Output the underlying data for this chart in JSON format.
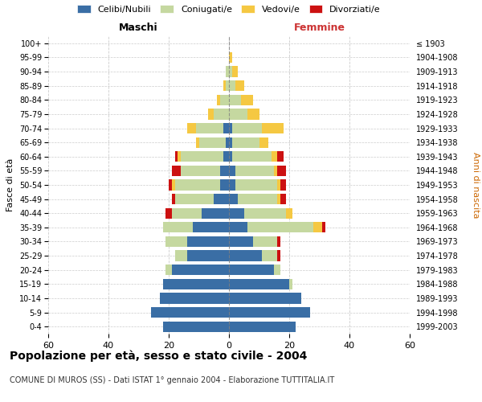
{
  "age_groups": [
    "0-4",
    "5-9",
    "10-14",
    "15-19",
    "20-24",
    "25-29",
    "30-34",
    "35-39",
    "40-44",
    "45-49",
    "50-54",
    "55-59",
    "60-64",
    "65-69",
    "70-74",
    "75-79",
    "80-84",
    "85-89",
    "90-94",
    "95-99",
    "100+"
  ],
  "birth_years": [
    "1999-2003",
    "1994-1998",
    "1989-1993",
    "1984-1988",
    "1979-1983",
    "1974-1978",
    "1969-1973",
    "1964-1968",
    "1959-1963",
    "1954-1958",
    "1949-1953",
    "1944-1948",
    "1939-1943",
    "1934-1938",
    "1929-1933",
    "1924-1928",
    "1919-1923",
    "1914-1918",
    "1909-1913",
    "1904-1908",
    "≤ 1903"
  ],
  "maschi": {
    "celibi": [
      22,
      26,
      23,
      22,
      19,
      14,
      14,
      12,
      9,
      5,
      3,
      3,
      2,
      1,
      2,
      0,
      0,
      0,
      0,
      0,
      0
    ],
    "coniugati": [
      0,
      0,
      0,
      0,
      2,
      4,
      7,
      10,
      10,
      13,
      15,
      13,
      14,
      9,
      9,
      5,
      3,
      1,
      1,
      0,
      0
    ],
    "vedovi": [
      0,
      0,
      0,
      0,
      0,
      0,
      0,
      0,
      0,
      0,
      1,
      0,
      1,
      1,
      3,
      2,
      1,
      1,
      0,
      0,
      0
    ],
    "divorziati": [
      0,
      0,
      0,
      0,
      0,
      0,
      0,
      0,
      2,
      1,
      1,
      3,
      1,
      0,
      0,
      0,
      0,
      0,
      0,
      0,
      0
    ]
  },
  "femmine": {
    "nubili": [
      22,
      27,
      24,
      20,
      15,
      11,
      8,
      6,
      5,
      3,
      2,
      2,
      1,
      1,
      1,
      0,
      0,
      0,
      0,
      0,
      0
    ],
    "coniugate": [
      0,
      0,
      0,
      1,
      2,
      5,
      8,
      22,
      14,
      13,
      14,
      13,
      13,
      9,
      10,
      6,
      4,
      2,
      1,
      0,
      0
    ],
    "vedove": [
      0,
      0,
      0,
      0,
      0,
      0,
      0,
      3,
      2,
      1,
      1,
      1,
      2,
      3,
      7,
      4,
      4,
      3,
      2,
      1,
      0
    ],
    "divorziate": [
      0,
      0,
      0,
      0,
      0,
      1,
      1,
      1,
      0,
      2,
      2,
      3,
      2,
      0,
      0,
      0,
      0,
      0,
      0,
      0,
      0
    ]
  },
  "color_celibi": "#3a6ea5",
  "color_coniugati": "#c5d8a0",
  "color_vedovi": "#f5c842",
  "color_divorziati": "#cc1111",
  "xlim": 60,
  "title": "Popolazione per età, sesso e stato civile - 2004",
  "subtitle": "COMUNE DI MUROS (SS) - Dati ISTAT 1° gennaio 2004 - Elaborazione TUTTITALIA.IT",
  "ylabel_left": "Fasce di età",
  "ylabel_right": "Anni di nascita",
  "label_maschi": "Maschi",
  "label_femmine": "Femmine",
  "legend_labels": [
    "Celibi/Nubili",
    "Coniugati/e",
    "Vedovi/e",
    "Divorziati/e"
  ],
  "bg_color": "#ffffff",
  "grid_color": "#cccccc"
}
